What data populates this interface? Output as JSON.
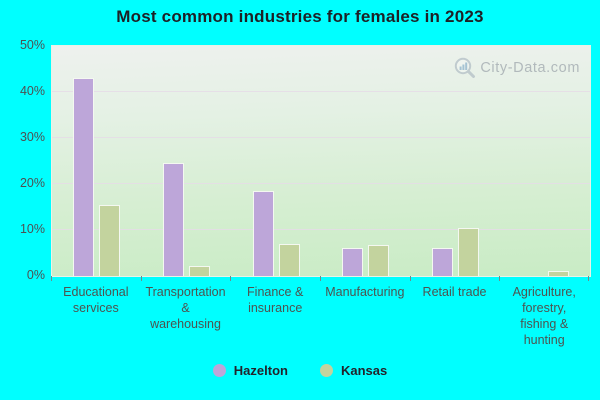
{
  "page": {
    "background_color": "#00ffff"
  },
  "title": "Most common industries for females in 2023",
  "watermark": {
    "text": "City-Data.com",
    "icon": "magnifier-bar-chart-icon",
    "color": "#9fa7ad"
  },
  "legend": {
    "items": [
      {
        "label": "Hazelton",
        "color": "#bda6d9"
      },
      {
        "label": "Kansas",
        "color": "#c3d39e"
      }
    ]
  },
  "chart_data": {
    "type": "bar",
    "title": "Most common industries for females in 2023",
    "categories": [
      "Educational services",
      "Transportation & warehousing",
      "Finance & insurance",
      "Manufacturing",
      "Retail trade",
      "Agriculture, forestry, fishing & hunting"
    ],
    "xtick_labels": [
      "Educational\nservices",
      "Transportation\n&\nwarehousing",
      "Finance &\ninsurance",
      "Manufacturing",
      "Retail trade",
      "Agriculture,\nforestry,\nfishing &\nhunting"
    ],
    "series": [
      {
        "name": "Hazelton",
        "color": "#bda6d9",
        "values": [
          43,
          24.5,
          18.5,
          6,
          6,
          0
        ]
      },
      {
        "name": "Kansas",
        "color": "#c3d39e",
        "values": [
          15.5,
          2.2,
          7,
          6.7,
          10.5,
          1
        ]
      }
    ],
    "xlabel": "",
    "ylabel": "",
    "ylim": [
      0,
      50
    ],
    "yticks": [
      0,
      10,
      20,
      30,
      40,
      50
    ],
    "ytick_labels_top_to_bottom": [
      "50%",
      "40%",
      "30%",
      "20%",
      "10%",
      "0%"
    ],
    "grid": "horizontal",
    "legend_position": "bottom"
  }
}
